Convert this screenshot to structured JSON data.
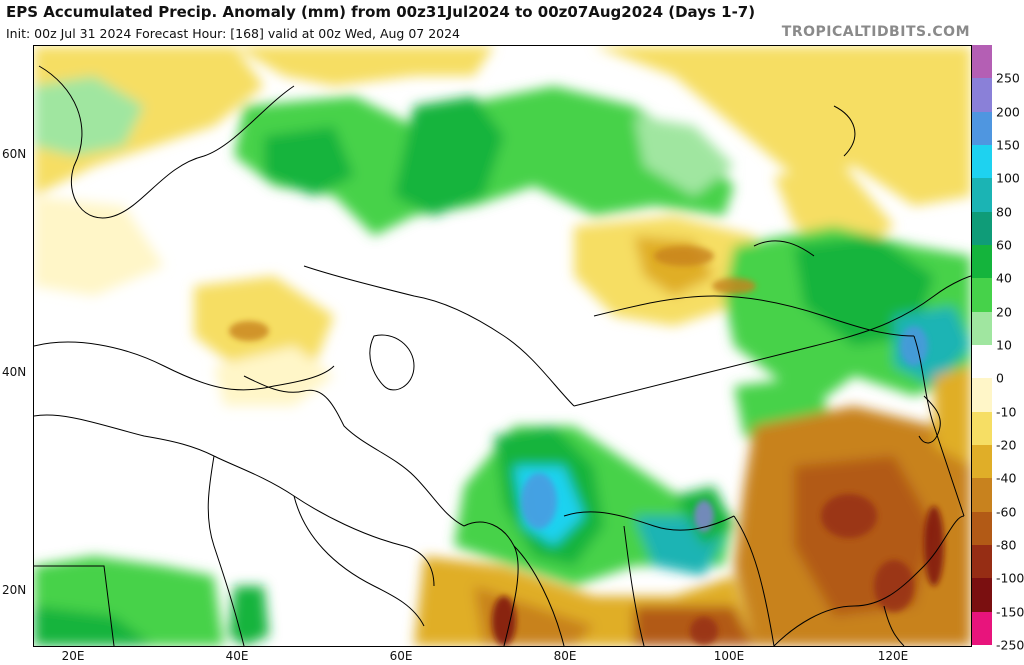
{
  "header": {
    "title": "EPS Accumulated Precip. Anomaly (mm) from 00z31Jul2024 to 00z07Aug2024 (Days 1-7)",
    "subtitle": "Init: 00z Jul 31 2024   Forecast Hour: [168]   valid at 00z Wed, Aug 07 2024",
    "watermark": "TROPICALTIDBITS.COM"
  },
  "axes": {
    "lat_labels": [
      "60N",
      "40N",
      "20N"
    ],
    "lon_labels": [
      "20E",
      "40E",
      "60E",
      "80E",
      "100E",
      "120E"
    ]
  },
  "legend": {
    "labels": [
      "250",
      "200",
      "150",
      "100",
      "80",
      "60",
      "40",
      "20",
      "10",
      "0",
      "-10",
      "-20",
      "-40",
      "-60",
      "-80",
      "-100",
      "-150",
      "-250"
    ],
    "colors": [
      "#b45fb4",
      "#8a80d8",
      "#4f96e0",
      "#1ed2f0",
      "#1bb4b4",
      "#0f9c78",
      "#14b43c",
      "#46d24a",
      "#a0e6a0",
      "#ffffff",
      "#fff6c8",
      "#f6de64",
      "#e0ae28",
      "#c8821e",
      "#b25a16",
      "#962d14",
      "#7a0f10",
      "#e8147c"
    ]
  }
}
